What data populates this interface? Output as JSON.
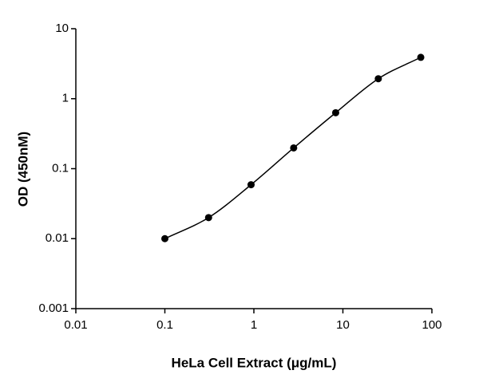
{
  "chart_data": {
    "type": "scatter",
    "x_label": "HeLa Cell Extract (μg/mL)",
    "y_label": "OD (450nM)",
    "xscale": "log",
    "yscale": "log",
    "xlim": [
      0.01,
      100
    ],
    "xticks": [
      0.01,
      0.1,
      1,
      10,
      100
    ],
    "ylim": [
      0.001,
      10
    ],
    "yticks": [
      0.001,
      0.01,
      0.1,
      1,
      10
    ],
    "fit_curve": true,
    "series": [
      {
        "color": "#000000",
        "x": [
          0.1,
          0.31,
          0.93,
          2.8,
          8.3,
          25,
          75
        ],
        "values": [
          0.01,
          0.02,
          0.059,
          0.198,
          0.63,
          1.93,
          3.9
        ]
      }
    ]
  }
}
